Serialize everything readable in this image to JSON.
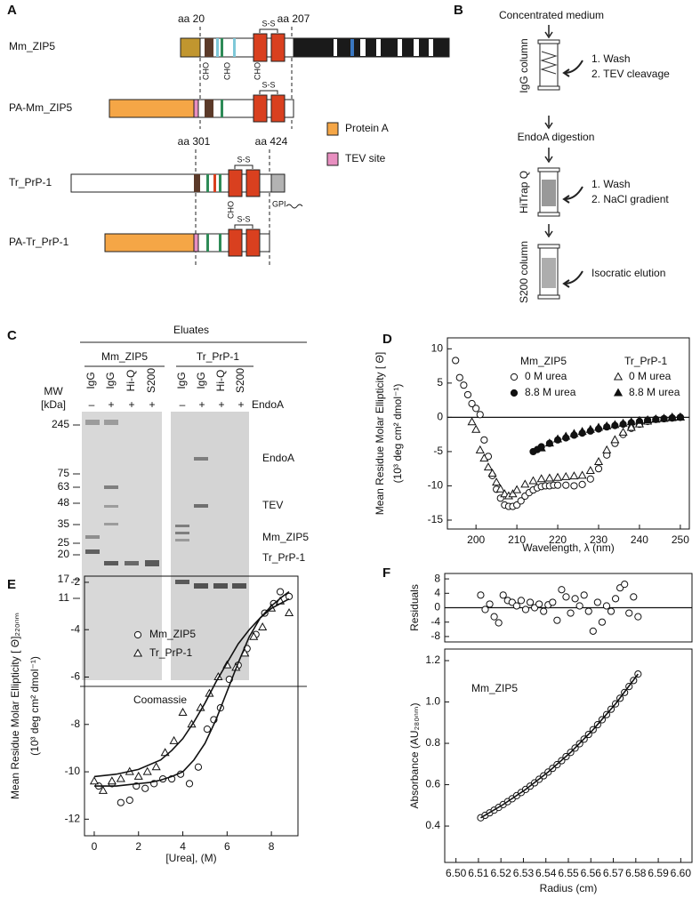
{
  "panel_a": {
    "label": "A",
    "constructs": [
      "Mm_ZIP5",
      "PA-Mm_ZIP5",
      "Tr_PrP-1",
      "PA-Tr_PrP-1"
    ],
    "positions": [
      "aa 20",
      "aa 207",
      "aa 301",
      "aa 424"
    ],
    "disulfide": "S-S",
    "glycan": "CHO",
    "anchor": "GPI",
    "legend": [
      "Protein A",
      "TEV site"
    ]
  },
  "panel_b": {
    "label": "B",
    "steps": [
      "Concentrated medium",
      "EndoA digestion"
    ],
    "columns": [
      "IgG column",
      "HiTrap Q",
      "S200 column"
    ],
    "actions": [
      "1. Wash",
      "2. TEV cleavage",
      "1. Wash",
      "2. NaCl gradient",
      "Isocratic elution"
    ]
  },
  "panel_c": {
    "label": "C",
    "header": "Eluates",
    "groups": [
      "Mm_ZIP5",
      "Tr_PrP-1"
    ],
    "lanes": [
      "IgG",
      "IgG",
      "Hi-Q",
      "S200"
    ],
    "endoa_signs": [
      "–",
      "+",
      "+",
      "+"
    ],
    "mw_label": "MW",
    "mw_unit": "[kDa]",
    "endoa": "EndoA",
    "mw": [
      "245",
      "75",
      "63",
      "48",
      "35",
      "25",
      "20",
      "17",
      "11"
    ],
    "bands": [
      "EndoA",
      "TEV",
      "Mm_ZIP5",
      "Tr_PrP-1"
    ],
    "stain": "Coomassie"
  },
  "chart_data": [
    {
      "type": "scatter",
      "panel_label": "D",
      "xlabel": "Wavelength, λ (nm)",
      "ylabel": [
        "Mean Residue Molar Ellipticity [ Θ]",
        "(10³ deg cm² dmol⁻¹)"
      ],
      "xlim": [
        193,
        252.2
      ],
      "ylim": [
        -16.3,
        11.6
      ],
      "xticks": [
        200,
        210,
        220,
        230,
        240,
        250
      ],
      "yticks": [
        10,
        5,
        0,
        -5,
        -10,
        -15
      ],
      "zero_line": true,
      "legend_groups": [
        "Mm_ZIP5",
        "Tr_PrP-1"
      ],
      "series": [
        {
          "name": "0 M urea",
          "marker": "circle-open",
          "x": [
            195,
            196,
            197,
            198,
            199,
            200,
            201,
            202,
            203,
            204,
            205,
            206,
            207,
            208,
            209,
            210,
            211,
            212,
            213,
            214,
            215,
            216,
            217,
            218,
            219,
            220,
            222,
            224,
            226,
            228,
            230,
            232,
            234,
            236,
            238,
            240,
            242,
            244,
            246,
            248,
            250
          ],
          "values": [
            8.3,
            5.8,
            4.7,
            3.3,
            2,
            1.3,
            0.4,
            -3.3,
            -5.7,
            -8.5,
            -10.5,
            -11.8,
            -12.8,
            -13,
            -13,
            -12.8,
            -12.2,
            -11.5,
            -11,
            -10.6,
            -10.3,
            -10.1,
            -10,
            -10,
            -9.9,
            -9.9,
            -9.9,
            -10,
            -9.8,
            -9,
            -7.5,
            -5.5,
            -3.8,
            -2.5,
            -1.6,
            -1,
            -0.6,
            -0.3,
            -0.2,
            -0.1,
            0
          ]
        },
        {
          "name": "8.8 M urea",
          "marker": "circle-filled",
          "x": [
            214,
            215,
            216,
            218,
            220,
            222,
            224,
            226,
            228,
            230,
            232,
            234,
            236,
            238,
            240,
            242,
            244,
            246,
            248,
            250
          ],
          "values": [
            -5,
            -4.7,
            -4.3,
            -3.8,
            -3.3,
            -3,
            -2.6,
            -2.3,
            -2,
            -1.7,
            -1.4,
            -1.2,
            -1,
            -0.8,
            -0.6,
            -0.4,
            -0.3,
            -0.2,
            -0.1,
            0
          ]
        },
        {
          "name": "0 M urea",
          "marker": "triangle-open",
          "x": [
            199,
            200,
            201,
            202,
            203,
            204,
            205,
            206,
            207,
            208,
            209,
            210,
            212,
            214,
            216,
            218,
            220,
            222,
            224,
            226,
            228,
            230,
            232,
            234,
            236,
            238,
            240,
            242,
            244,
            246,
            248,
            250
          ],
          "values": [
            -0.7,
            -1.8,
            -4.8,
            -6,
            -7.3,
            -8.2,
            -9.5,
            -10.5,
            -11.2,
            -11.5,
            -11.2,
            -10.6,
            -9.8,
            -9.3,
            -9,
            -8.9,
            -8.8,
            -8.7,
            -8.6,
            -8.5,
            -7.8,
            -6.5,
            -4.8,
            -3.3,
            -2.2,
            -1.5,
            -1,
            -0.6,
            -0.3,
            -0.2,
            0,
            0
          ]
        },
        {
          "name": "8.8 M urea",
          "marker": "triangle-filled",
          "x": [
            216,
            218,
            220,
            222,
            224,
            226,
            228,
            230,
            232,
            234,
            236,
            238,
            240,
            242,
            244,
            246,
            248,
            250
          ],
          "values": [
            -4.5,
            -3.8,
            -3.2,
            -2.8,
            -2.4,
            -2.1,
            -1.8,
            -1.5,
            -1.3,
            -1.1,
            -0.9,
            -0.7,
            -0.5,
            -0.4,
            -0.3,
            -0.2,
            -0.1,
            0
          ]
        }
      ]
    },
    {
      "type": "scatter",
      "panel_label": "E",
      "xlabel": "[Urea], (M)",
      "ylabel": [
        "Mean Residue Molar Ellipticity [ Θ]₂₂₀ₙₘ",
        "(10³ deg cm² dmol⁻¹)"
      ],
      "xlim": [
        -0.44,
        9.2
      ],
      "ylim": [
        -12.7,
        -1.74
      ],
      "xticks": [
        0,
        2,
        4,
        6,
        8
      ],
      "yticks": [
        -2,
        -4,
        -6,
        -8,
        -10,
        -12
      ],
      "series": [
        {
          "name": "Mm_ZIP5",
          "marker": "circle-open",
          "x": [
            0.2,
            0.8,
            1.2,
            1.6,
            1.9,
            2.3,
            2.7,
            3.1,
            3.5,
            3.9,
            4.3,
            4.7,
            5.1,
            5.4,
            5.7,
            6.1,
            6.5,
            6.9,
            7.3,
            7.7,
            8.1,
            8.4,
            8.8
          ],
          "values": [
            -10.6,
            -10.5,
            -11.3,
            -11.2,
            -10.6,
            -10.7,
            -10.5,
            -10.3,
            -10.3,
            -10.1,
            -10.5,
            -9.8,
            -8.2,
            -7.8,
            -7.3,
            -6.1,
            -5.5,
            -4.8,
            -4.2,
            -3.3,
            -2.9,
            -2.4,
            -2.6
          ]
        },
        {
          "name": "Tr_PrP-1",
          "marker": "triangle-open",
          "x": [
            0,
            0.4,
            0.8,
            1.2,
            1.6,
            2,
            2.4,
            2.8,
            3.2,
            3.6,
            4,
            4.4,
            4.8,
            5.2,
            5.6,
            6,
            6.4,
            6.8,
            7.2,
            7.6,
            8,
            8.4,
            8.8
          ],
          "values": [
            -10.4,
            -10.8,
            -10.4,
            -10.3,
            -10,
            -10.2,
            -10,
            -9.8,
            -9.2,
            -8.7,
            -7.5,
            -8,
            -7.3,
            -6.7,
            -6,
            -5.5,
            -5.6,
            -5,
            -4.3,
            -3.9,
            -3.1,
            -2.8,
            -3.3
          ]
        },
        {
          "marker": "line",
          "x": [
            0,
            0.5,
            1,
            1.5,
            2,
            2.5,
            3,
            3.5,
            4,
            4.5,
            5,
            5.5,
            6,
            6.5,
            7,
            7.5,
            8,
            8.5,
            8.8
          ],
          "values": [
            -10.6,
            -10.6,
            -10.6,
            -10.55,
            -10.5,
            -10.45,
            -10.35,
            -10.2,
            -10,
            -9.5,
            -8.8,
            -7.8,
            -6.6,
            -5.4,
            -4.3,
            -3.5,
            -3,
            -2.6,
            -2.4
          ]
        },
        {
          "marker": "line",
          "x": [
            0,
            1,
            2,
            3,
            3.5,
            4,
            4.5,
            5,
            5.5,
            6,
            6.5,
            7,
            7.5,
            8,
            8.8
          ],
          "values": [
            -10.2,
            -10.1,
            -9.9,
            -9.5,
            -9.1,
            -8.6,
            -7.9,
            -7.1,
            -6.2,
            -5.4,
            -4.6,
            -4,
            -3.5,
            -3.1,
            -2.7
          ]
        }
      ]
    },
    {
      "type": "scatter",
      "panel_label": "F",
      "ylabel": [
        "Residuals"
      ],
      "xlim": [
        6.495,
        6.605
      ],
      "ylim": [
        -9.5,
        9.5
      ],
      "yticks": [
        8,
        4,
        0,
        -4,
        -8
      ],
      "zero_line": true,
      "x": [
        6.511,
        6.513,
        6.515,
        6.517,
        6.519,
        6.521,
        6.523,
        6.525,
        6.527,
        6.529,
        6.531,
        6.533,
        6.535,
        6.537,
        6.539,
        6.541,
        6.543,
        6.545,
        6.547,
        6.549,
        6.551,
        6.553,
        6.555,
        6.557,
        6.559,
        6.561,
        6.563,
        6.565,
        6.567,
        6.569,
        6.571,
        6.573,
        6.575,
        6.577,
        6.579,
        6.581
      ],
      "series": [
        {
          "marker": "circle-open",
          "values": [
            3.5,
            -0.5,
            1,
            -2.5,
            -4.2,
            3.5,
            2,
            1.5,
            0.5,
            2,
            -0.5,
            1.5,
            0,
            1,
            -1,
            0.8,
            1.5,
            -3.5,
            5,
            3,
            -1.5,
            2.5,
            0.5,
            3.5,
            -1,
            -6.5,
            1.5,
            -4,
            0.5,
            -1,
            2.5,
            5.5,
            6.5,
            -1.5,
            3,
            -2.5
          ]
        }
      ]
    },
    {
      "type": "scatter",
      "annotation": "Mm_ZIP5",
      "xlabel": "Radius (cm)",
      "ylabel": [
        "Absorbance (AU₂₈₀ₙₘ)"
      ],
      "xlim": [
        6.495,
        6.605
      ],
      "ylim": [
        0.224,
        1.256
      ],
      "xticks": [
        {
          "value": 6.5,
          "label": "6.50"
        },
        {
          "value": 6.51,
          "label": "6.51"
        },
        {
          "value": 6.52,
          "label": "6.52"
        },
        {
          "value": 6.53,
          "label": "6.53"
        },
        {
          "value": 6.54,
          "label": "6.54"
        },
        {
          "value": 6.55,
          "label": "6.55"
        },
        {
          "value": 6.56,
          "label": "6.56"
        },
        {
          "value": 6.57,
          "label": "6.57"
        },
        {
          "value": 6.58,
          "label": "6.58"
        },
        {
          "value": 6.59,
          "label": "6.59"
        },
        {
          "value": 6.6,
          "label": "6.60"
        }
      ],
      "yticks": [
        0.4,
        0.6,
        0.8,
        {
          "value": 1,
          "label": "1.0"
        },
        1.2
      ],
      "x": [
        6.511,
        6.513,
        6.515,
        6.517,
        6.519,
        6.521,
        6.523,
        6.525,
        6.527,
        6.529,
        6.531,
        6.533,
        6.535,
        6.537,
        6.539,
        6.541,
        6.543,
        6.545,
        6.547,
        6.549,
        6.551,
        6.553,
        6.555,
        6.557,
        6.559,
        6.561,
        6.563,
        6.565,
        6.567,
        6.569,
        6.571,
        6.573,
        6.575,
        6.577,
        6.579,
        6.581
      ],
      "series": [
        {
          "marker": "circle-open",
          "values": [
            0.44,
            0.452,
            0.464,
            0.477,
            0.49,
            0.504,
            0.518,
            0.532,
            0.547,
            0.562,
            0.577,
            0.593,
            0.609,
            0.626,
            0.643,
            0.661,
            0.679,
            0.697,
            0.716,
            0.736,
            0.756,
            0.777,
            0.798,
            0.82,
            0.843,
            0.866,
            0.89,
            0.914,
            0.939,
            0.965,
            0.991,
            1.018,
            1.046,
            1.075,
            1.104,
            1.135
          ]
        },
        {
          "marker": "line",
          "x": [
            6.511,
            6.521,
            6.531,
            6.541,
            6.551,
            6.561,
            6.571,
            6.581
          ],
          "values": [
            0.44,
            0.504,
            0.577,
            0.661,
            0.756,
            0.866,
            0.991,
            1.135
          ]
        }
      ]
    }
  ]
}
